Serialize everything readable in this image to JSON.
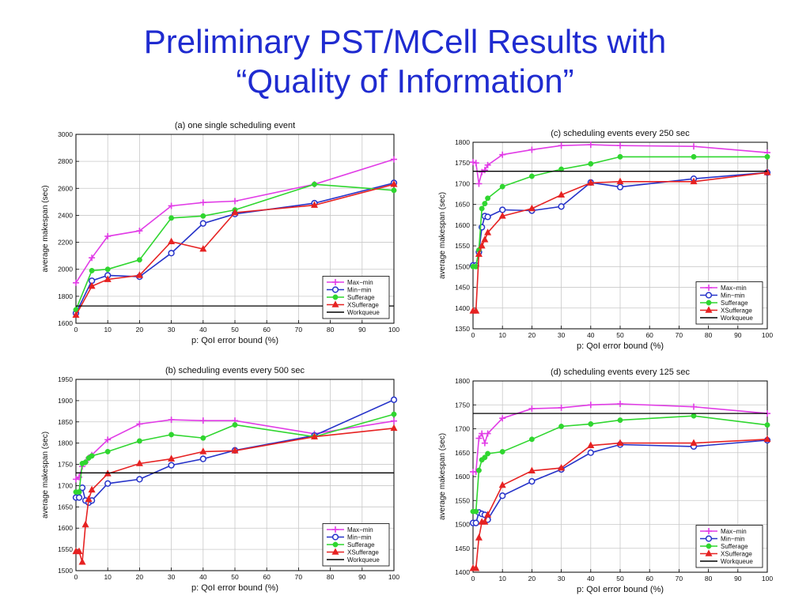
{
  "slide": {
    "title_line1": "Preliminary PST/MCell Results with",
    "title_line2": "“Quality of Information”"
  },
  "colors": {
    "Max−min": "#e13ce6",
    "Min−min": "#2633c9",
    "Sufferage": "#2fd62f",
    "XSufferage": "#e62222",
    "Workqueue": "#000000",
    "title": "#1f2bd0"
  },
  "chart_data": [
    {
      "id": "a",
      "type": "line",
      "title": "(a) one single scheduling event",
      "xlabel": "p: QoI error bound (%)",
      "ylabel": "average makespan (sec)",
      "xlim": [
        0,
        100
      ],
      "ylim": [
        1600,
        3000
      ],
      "xticks": [
        0,
        10,
        20,
        30,
        40,
        50,
        60,
        70,
        80,
        90,
        100
      ],
      "yticks": [
        1600,
        1800,
        2000,
        2200,
        2400,
        2600,
        2800,
        3000
      ],
      "legend_position": "bottom-right",
      "series": [
        {
          "name": "Max−min",
          "marker": "plus",
          "x": [
            0,
            5,
            10,
            20,
            30,
            40,
            50,
            75,
            100
          ],
          "y": [
            1900,
            2085,
            2245,
            2285,
            2470,
            2495,
            2505,
            2630,
            2815
          ]
        },
        {
          "name": "Min−min",
          "marker": "circle",
          "x": [
            0,
            5,
            10,
            20,
            30,
            40,
            50,
            75,
            100
          ],
          "y": [
            1675,
            1915,
            1955,
            1945,
            2120,
            2340,
            2410,
            2490,
            2640
          ]
        },
        {
          "name": "Sufferage",
          "marker": "dot",
          "x": [
            0,
            5,
            10,
            20,
            30,
            40,
            50,
            75,
            100
          ],
          "y": [
            1700,
            1990,
            2000,
            2070,
            2380,
            2395,
            2440,
            2630,
            2585
          ]
        },
        {
          "name": "XSufferage",
          "marker": "triangle",
          "x": [
            0,
            5,
            10,
            20,
            30,
            40,
            50,
            75,
            100
          ],
          "y": [
            1660,
            1875,
            1925,
            1955,
            2205,
            2150,
            2420,
            2475,
            2630
          ]
        },
        {
          "name": "Workqueue",
          "marker": "none",
          "x": [
            0,
            100
          ],
          "y": [
            1728,
            1728
          ]
        }
      ]
    },
    {
      "id": "c",
      "type": "line",
      "title": "(c) scheduling events every 250 sec",
      "xlabel": "p: QoI error bound (%)",
      "ylabel": "average makespan (sec)",
      "xlim": [
        0,
        100
      ],
      "ylim": [
        1350,
        1800
      ],
      "xticks": [
        0,
        10,
        20,
        30,
        40,
        50,
        60,
        70,
        80,
        90,
        100
      ],
      "yticks": [
        1350,
        1400,
        1450,
        1500,
        1550,
        1600,
        1650,
        1700,
        1750,
        1800
      ],
      "legend_position": "bottom-right",
      "series": [
        {
          "name": "Max−min",
          "marker": "plus",
          "x": [
            0,
            1,
            2,
            3,
            4,
            5,
            10,
            20,
            30,
            40,
            50,
            75,
            100
          ],
          "y": [
            1752,
            1750,
            1700,
            1728,
            1733,
            1745,
            1770,
            1782,
            1792,
            1794,
            1792,
            1790,
            1775
          ]
        },
        {
          "name": "Min−min",
          "marker": "circle",
          "x": [
            0,
            1,
            2,
            3,
            4,
            5,
            10,
            20,
            30,
            40,
            50,
            75,
            100
          ],
          "y": [
            1503,
            1503,
            1535,
            1595,
            1622,
            1620,
            1637,
            1635,
            1645,
            1703,
            1692,
            1712,
            1727
          ]
        },
        {
          "name": "Sufferage",
          "marker": "dot",
          "x": [
            0,
            1,
            2,
            3,
            4,
            5,
            10,
            20,
            30,
            40,
            50,
            75,
            100
          ],
          "y": [
            1500,
            1500,
            1540,
            1640,
            1652,
            1665,
            1693,
            1718,
            1735,
            1748,
            1765,
            1765,
            1765
          ]
        },
        {
          "name": "XSufferage",
          "marker": "triangle",
          "x": [
            0,
            1,
            2,
            3,
            4,
            5,
            10,
            20,
            30,
            40,
            50,
            75,
            100
          ],
          "y": [
            1393,
            1393,
            1530,
            1550,
            1565,
            1582,
            1622,
            1640,
            1673,
            1702,
            1705,
            1705,
            1727
          ]
        },
        {
          "name": "Workqueue",
          "marker": "none",
          "x": [
            0,
            100
          ],
          "y": [
            1730,
            1730
          ]
        }
      ]
    },
    {
      "id": "b",
      "type": "line",
      "title": "(b) scheduling events every 500 sec",
      "xlabel": "p: QoI error bound (%)",
      "ylabel": "average makespan (sec)",
      "xlim": [
        0,
        100
      ],
      "ylim": [
        1500,
        1950
      ],
      "xticks": [
        0,
        10,
        20,
        30,
        40,
        50,
        60,
        70,
        80,
        90,
        100
      ],
      "yticks": [
        1500,
        1550,
        1600,
        1650,
        1700,
        1750,
        1800,
        1850,
        1900,
        1950
      ],
      "legend_position": "bottom-right",
      "series": [
        {
          "name": "Max−min",
          "marker": "plus",
          "x": [
            0,
            1,
            2,
            3,
            4,
            5,
            10,
            20,
            30,
            40,
            50,
            75,
            100
          ],
          "y": [
            1715,
            1720,
            1745,
            1755,
            1765,
            1772,
            1808,
            1845,
            1855,
            1853,
            1853,
            1822,
            1852
          ]
        },
        {
          "name": "Min−min",
          "marker": "circle",
          "x": [
            0,
            1,
            2,
            3,
            4,
            5,
            10,
            20,
            30,
            40,
            50,
            75,
            100
          ],
          "y": [
            1672,
            1672,
            1695,
            1665,
            1660,
            1665,
            1705,
            1715,
            1748,
            1763,
            1783,
            1818,
            1902
          ]
        },
        {
          "name": "Sufferage",
          "marker": "dot",
          "x": [
            0,
            1,
            2,
            3,
            4,
            5,
            10,
            20,
            30,
            40,
            50,
            75,
            100
          ],
          "y": [
            1685,
            1685,
            1752,
            1755,
            1765,
            1770,
            1780,
            1805,
            1820,
            1812,
            1843,
            1815,
            1868
          ]
        },
        {
          "name": "XSufferage",
          "marker": "triangle",
          "x": [
            0,
            1,
            2,
            3,
            4,
            5,
            10,
            20,
            30,
            40,
            50,
            75,
            100
          ],
          "y": [
            1545,
            1545,
            1520,
            1608,
            1668,
            1690,
            1728,
            1752,
            1763,
            1780,
            1782,
            1815,
            1835
          ]
        },
        {
          "name": "Workqueue",
          "marker": "none",
          "x": [
            0,
            100
          ],
          "y": [
            1730,
            1730
          ]
        }
      ]
    },
    {
      "id": "d",
      "type": "line",
      "title": "(d) scheduling events every 125 sec",
      "xlabel": "p: QoI error bound (%)",
      "ylabel": "average makespan (sec)",
      "xlim": [
        0,
        100
      ],
      "ylim": [
        1400,
        1800
      ],
      "xticks": [
        0,
        10,
        20,
        30,
        40,
        50,
        60,
        70,
        80,
        90,
        100
      ],
      "yticks": [
        1400,
        1450,
        1500,
        1550,
        1600,
        1650,
        1700,
        1750,
        1800
      ],
      "legend_position": "bottom-right",
      "series": [
        {
          "name": "Max−min",
          "marker": "plus",
          "x": [
            0,
            1,
            2,
            3,
            4,
            5,
            10,
            20,
            30,
            40,
            50,
            75,
            100
          ],
          "y": [
            1610,
            1610,
            1680,
            1690,
            1670,
            1690,
            1722,
            1742,
            1744,
            1750,
            1752,
            1746,
            1732
          ]
        },
        {
          "name": "Min−min",
          "marker": "circle",
          "x": [
            0,
            1,
            2,
            3,
            4,
            5,
            10,
            20,
            30,
            40,
            50,
            75,
            100
          ],
          "y": [
            1503,
            1503,
            1525,
            1522,
            1520,
            1510,
            1560,
            1590,
            1615,
            1650,
            1667,
            1663,
            1676
          ]
        },
        {
          "name": "Sufferage",
          "marker": "dot",
          "x": [
            0,
            1,
            2,
            3,
            4,
            5,
            10,
            20,
            30,
            40,
            50,
            75,
            100
          ],
          "y": [
            1527,
            1527,
            1613,
            1635,
            1640,
            1648,
            1652,
            1678,
            1705,
            1710,
            1718,
            1727,
            1708
          ]
        },
        {
          "name": "XSufferage",
          "marker": "triangle",
          "x": [
            0,
            1,
            2,
            3,
            4,
            5,
            10,
            20,
            30,
            40,
            50,
            75,
            100
          ],
          "y": [
            1408,
            1408,
            1472,
            1505,
            1505,
            1520,
            1582,
            1612,
            1618,
            1665,
            1670,
            1670,
            1678
          ]
        },
        {
          "name": "Workqueue",
          "marker": "none",
          "x": [
            0,
            100
          ],
          "y": [
            1732,
            1732
          ]
        }
      ]
    }
  ]
}
